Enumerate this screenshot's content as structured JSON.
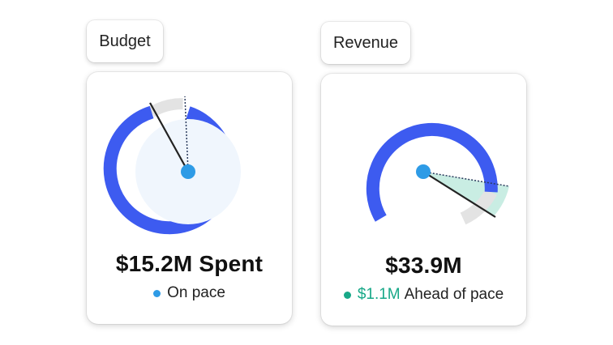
{
  "colors": {
    "gauge_blue": "#3d5bf0",
    "track_gray": "#e3e3e3",
    "inner_fill": "#f0f6fd",
    "center_dot": "#2e9be6",
    "needle": "#222222",
    "ahead_fill": "#bfeade",
    "teal": "#18a888"
  },
  "budget": {
    "tab_label": "Budget",
    "amount": "$15.2M Spent",
    "status_text": "On pace",
    "status_dot_color": "#2e9be6",
    "progress_fraction": 0.95,
    "pace_fraction": 1.0
  },
  "revenue": {
    "tab_label": "Revenue",
    "amount": "$33.9M",
    "ahead_value": "$1.1M",
    "status_text": "Ahead of pace",
    "status_dot_color": "#18a888",
    "progress_fraction": 0.78,
    "pace_fraction": 0.71
  }
}
